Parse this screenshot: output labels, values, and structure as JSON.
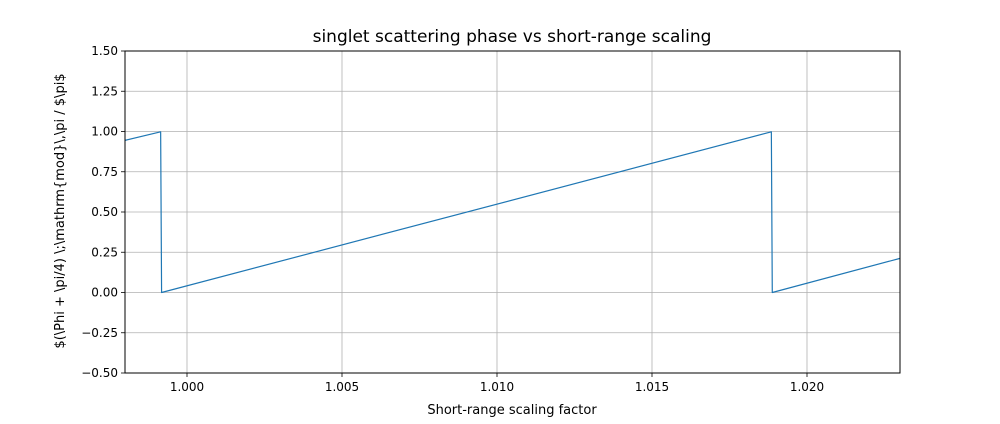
{
  "chart_data": {
    "type": "line",
    "title": "singlet scattering phase vs short-range scaling",
    "xlabel": "Short-range scaling factor",
    "ylabel": "$(\\Phi + \\pi/4) \\;\\mathrm{mod}\\,\\pi / $\\pi$",
    "xlim": [
      0.998,
      1.023
    ],
    "ylim": [
      -0.5,
      1.5
    ],
    "xticks": [
      1.0,
      1.005,
      1.01,
      1.015,
      1.02
    ],
    "xtick_labels": [
      "1.000",
      "1.005",
      "1.010",
      "1.015",
      "1.020"
    ],
    "yticks": [
      -0.5,
      -0.25,
      0.0,
      0.25,
      0.5,
      0.75,
      1.0,
      1.25,
      1.5
    ],
    "ytick_labels": [
      "−0.50",
      "−0.25",
      "0.00",
      "0.25",
      "0.50",
      "0.75",
      "1.00",
      "1.25",
      "1.50"
    ],
    "grid": true,
    "legend": "none",
    "series": [
      {
        "color": "#1f77b4",
        "x": [
          0.998,
          0.99915,
          0.99918,
          1.01885,
          1.01888,
          1.023
        ],
        "y": [
          0.945,
          0.998,
          0.0,
          0.998,
          0.0,
          0.212
        ]
      }
    ]
  }
}
